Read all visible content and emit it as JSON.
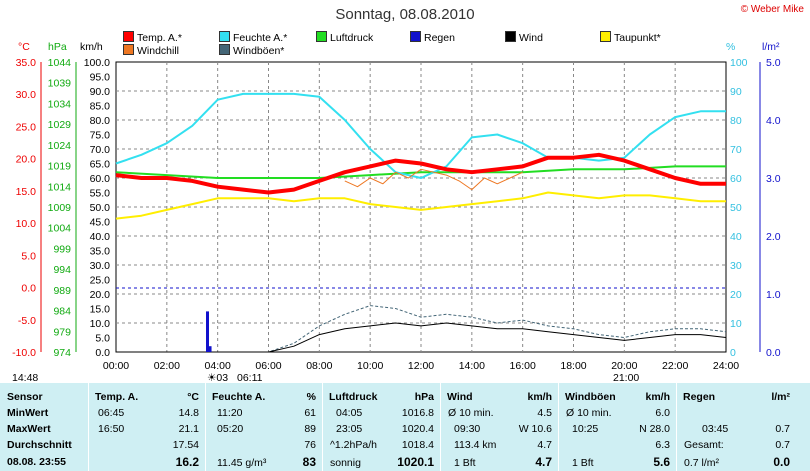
{
  "title": "Sonntag, 08.08.2010",
  "copyright": "© Weber Mike",
  "legend": [
    {
      "label": "Temp. A.*",
      "color": "#ff0000"
    },
    {
      "label": "Feuchte A.*",
      "color": "#33e0f0"
    },
    {
      "label": "Luftdruck",
      "color": "#22dd22"
    },
    {
      "label": "Regen",
      "color": "#1111cc"
    },
    {
      "label": "Wind",
      "color": "#000000"
    },
    {
      "label": "Taupunkt*",
      "color": "#ffee00"
    },
    {
      "label": "Windchill",
      "color": "#ee7722"
    },
    {
      "label": "Windböen*",
      "color": "#446677"
    }
  ],
  "axis_units": {
    "temp": "°C",
    "pressure": "hPa",
    "wind": "km/h",
    "humidity": "%",
    "rain": "l/m²"
  },
  "chart_data": {
    "type": "line",
    "x_ticks": [
      "00:00",
      "02:00",
      "04:00",
      "06:00",
      "08:00",
      "10:00",
      "12:00",
      "14:00",
      "16:00",
      "18:00",
      "20:00",
      "22:00",
      "24:00"
    ],
    "axes": {
      "temp": {
        "min": -10,
        "max": 35,
        "ticks": [
          "35.0",
          "30.0",
          "25.0",
          "20.0",
          "15.0",
          "10.0",
          "5.0",
          "0.0",
          "-5.0",
          "-10.0"
        ],
        "color": "#ff0000"
      },
      "pressure": {
        "min": 974,
        "max": 1044,
        "ticks": [
          "1044",
          "1039",
          "1034",
          "1029",
          "1024",
          "1019",
          "1014",
          "1009",
          "1004",
          "999",
          "994",
          "989",
          "984",
          "979",
          "974"
        ],
        "color": "#22aa22"
      },
      "wind": {
        "min": 0,
        "max": 100,
        "ticks": [
          "100.0",
          "95.0",
          "90.0",
          "85.0",
          "80.0",
          "75.0",
          "70.0",
          "65.0",
          "60.0",
          "55.0",
          "50.0",
          "45.0",
          "40.0",
          "35.0",
          "30.0",
          "25.0",
          "20.0",
          "15.0",
          "10.0",
          "5.0",
          "0.0"
        ],
        "color": "#000000"
      },
      "humidity": {
        "min": 0,
        "max": 100,
        "ticks": [
          "100",
          "90",
          "80",
          "70",
          "60",
          "50",
          "40",
          "30",
          "20",
          "10",
          "0"
        ],
        "color": "#33c0e0"
      },
      "rain": {
        "min": 0,
        "max": 5,
        "ticks": [
          "5.0",
          "4.0",
          "3.0",
          "2.0",
          "1.0",
          "0.0"
        ],
        "color": "#1111cc"
      }
    },
    "series": [
      {
        "name": "Temp. A.*",
        "axis": "wind",
        "x": [
          0,
          1,
          2,
          3,
          4,
          5,
          6,
          7,
          8,
          9,
          10,
          11,
          12,
          13,
          14,
          15,
          16,
          17,
          18,
          19,
          20,
          21,
          22,
          23,
          24
        ],
        "values": [
          61,
          60,
          60,
          59,
          57,
          56,
          55,
          56,
          59,
          62,
          64,
          66,
          65,
          63,
          62,
          63,
          64,
          67,
          67,
          68,
          66,
          63,
          60,
          58,
          58
        ]
      },
      {
        "name": "Feuchte A.*",
        "axis": "humidity",
        "x": [
          0,
          1,
          2,
          3,
          4,
          5,
          6,
          7,
          8,
          9,
          10,
          11,
          12,
          13,
          14,
          15,
          16,
          17,
          18,
          19,
          20,
          21,
          22,
          23,
          24
        ],
        "values": [
          65,
          68,
          72,
          78,
          87,
          89,
          89,
          89,
          88,
          80,
          70,
          62,
          60,
          64,
          74,
          75,
          72,
          67,
          67,
          66,
          67,
          75,
          81,
          83,
          83
        ]
      },
      {
        "name": "Luftdruck",
        "axis": "wind",
        "x": [
          0,
          2,
          4,
          6,
          8,
          10,
          12,
          14,
          16,
          18,
          20,
          22,
          24
        ],
        "values": [
          62,
          61,
          60,
          60,
          60,
          61,
          62,
          62,
          62,
          63,
          63,
          64,
          64
        ]
      },
      {
        "name": "Taupunkt*",
        "axis": "wind",
        "x": [
          0,
          1,
          2,
          3,
          4,
          5,
          6,
          7,
          8,
          9,
          10,
          11,
          12,
          13,
          14,
          15,
          16,
          17,
          18,
          19,
          20,
          21,
          22,
          23,
          24
        ],
        "values": [
          46,
          47,
          49,
          51,
          53,
          53,
          53,
          52,
          53,
          53,
          51,
          50,
          49,
          50,
          51,
          52,
          53,
          55,
          54,
          53,
          54,
          54,
          53,
          52,
          52
        ]
      },
      {
        "name": "Windchill",
        "axis": "wind",
        "x": [
          9,
          9.5,
          10,
          10.5,
          11,
          11.5,
          12,
          13,
          13.5,
          14,
          14.5,
          15,
          15.5,
          16
        ],
        "values": [
          59,
          57,
          60,
          58,
          62,
          60,
          63,
          61,
          59,
          56,
          60,
          58,
          60,
          62
        ]
      },
      {
        "name": "Wind",
        "axis": "wind",
        "x": [
          0,
          6,
          7,
          8,
          9,
          10,
          11,
          12,
          13,
          14,
          15,
          16,
          17,
          18,
          19,
          20,
          21,
          22,
          23,
          24
        ],
        "values": [
          0,
          0,
          2,
          6,
          8,
          9,
          10,
          9,
          10,
          9,
          8,
          8,
          7,
          6,
          5,
          4,
          5,
          6,
          6,
          5
        ]
      },
      {
        "name": "Windböen*",
        "axis": "wind",
        "x": [
          0,
          6,
          7,
          8,
          9,
          10,
          11,
          12,
          13,
          14,
          15,
          16,
          17,
          18,
          19,
          20,
          21,
          22,
          23,
          24
        ],
        "values": [
          0,
          0,
          3,
          9,
          13,
          16,
          15,
          12,
          13,
          12,
          10,
          11,
          9,
          8,
          6,
          5,
          7,
          8,
          8,
          7
        ]
      },
      {
        "name": "Regen",
        "axis": "rain",
        "type": "bar",
        "x": [
          3.6,
          3.7
        ],
        "values": [
          0.7,
          0.1
        ]
      }
    ]
  },
  "markers": {
    "left": "14:48",
    "bottom_left": "☀03",
    "bottom_mid": "06:11",
    "bottom_right": "21:00"
  },
  "table": {
    "rows": [
      "Sensor",
      "MinWert",
      "MaxWert",
      "Durchschnitt",
      "08.08. 23:55"
    ],
    "temp": {
      "header": "Temp. A.",
      "unit": "°C",
      "times": [
        "06:45",
        "16:50",
        "",
        ""
      ],
      "values": [
        "14.8",
        "21.1",
        "17.54",
        "16.2"
      ]
    },
    "hum": {
      "header": "Feuchte A.",
      "unit": "%",
      "times": [
        "11:20",
        "05:20",
        "",
        "11.45 g/m³"
      ],
      "values": [
        "61",
        "89",
        "76",
        "83"
      ]
    },
    "press": {
      "header": "Luftdruck",
      "unit": "hPa",
      "times": [
        "04:05",
        "23:05",
        "^1.2hPa/h",
        "sonnig"
      ],
      "values": [
        "1016.8",
        "1020.4",
        "1018.4",
        "1020.1"
      ]
    },
    "wind": {
      "header": "Wind",
      "unit": "km/h",
      "times": [
        "Ø 10 min.",
        "09:30",
        "113.4 km",
        "1 Bft"
      ],
      "values": [
        "4.5",
        "W 10.6",
        "4.7",
        "4.7"
      ]
    },
    "gust": {
      "header": "Windböen",
      "unit": "km/h",
      "times": [
        "Ø 10 min.",
        "10:25",
        "",
        "1 Bft"
      ],
      "values": [
        "6.0",
        "N 28.0",
        "6.3",
        "5.6"
      ]
    },
    "rain": {
      "header": "Regen",
      "unit": "l/m²",
      "times": [
        "",
        "03:45",
        "Gesamt:",
        "0.7 l/m²"
      ],
      "values": [
        "",
        "0.7",
        "0.7",
        "0.0"
      ]
    }
  }
}
